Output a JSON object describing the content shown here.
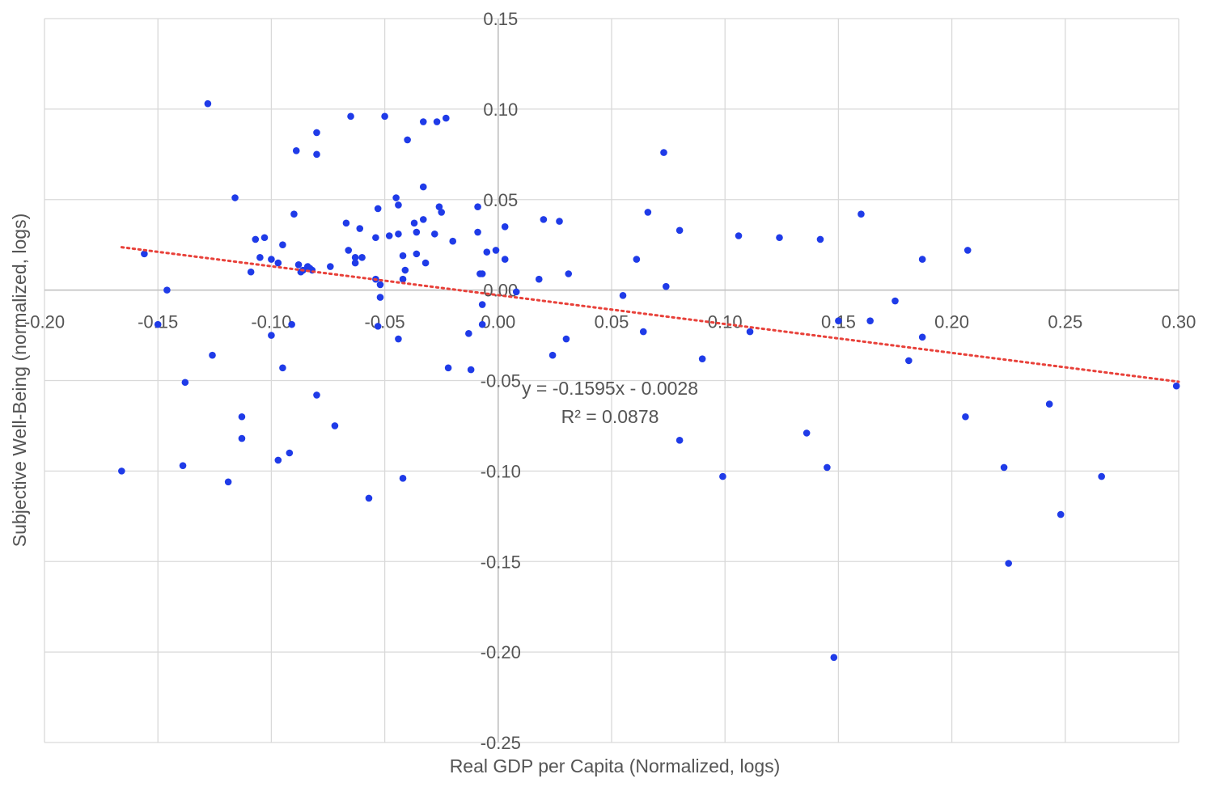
{
  "chart_data": {
    "type": "scatter",
    "xlabel": "Real GDP per Capita (Normalized, logs)",
    "ylabel": "Subjective Well-Being (normalized, logs)",
    "xlim": [
      -0.2,
      0.3
    ],
    "ylim": [
      -0.25,
      0.15
    ],
    "x_ticks": [
      "-0.20",
      "-0.15",
      "-0.10",
      "-0.05",
      "0.00",
      "0.05",
      "0.10",
      "0.15",
      "0.20",
      "0.25",
      "0.30"
    ],
    "y_ticks": [
      "0.15",
      "0.10",
      "0.05",
      "0.00",
      "-0.05",
      "-0.10",
      "-0.15",
      "-0.20",
      "-0.25"
    ],
    "grid": true,
    "point_color": "#1f3be8",
    "trendline": {
      "slope": -0.1595,
      "intercept": -0.0028,
      "x_range": [
        -0.166,
        0.3
      ],
      "color": "#e8413a",
      "style": "dotted",
      "equation": "y = -0.1595x - 0.0028",
      "r_squared": "R² = 0.0878"
    },
    "points": [
      [
        -0.128,
        0.103
      ],
      [
        -0.065,
        0.096
      ],
      [
        -0.05,
        0.096
      ],
      [
        -0.033,
        0.093
      ],
      [
        -0.027,
        0.093
      ],
      [
        -0.023,
        0.095
      ],
      [
        -0.08,
        0.087
      ],
      [
        -0.04,
        0.083
      ],
      [
        -0.089,
        0.077
      ],
      [
        -0.08,
        0.075
      ],
      [
        0.073,
        0.076
      ],
      [
        -0.033,
        0.057
      ],
      [
        -0.116,
        0.051
      ],
      [
        -0.045,
        0.051
      ],
      [
        -0.044,
        0.047
      ],
      [
        -0.026,
        0.046
      ],
      [
        -0.009,
        0.046
      ],
      [
        -0.053,
        0.045
      ],
      [
        -0.025,
        0.043
      ],
      [
        0.066,
        0.043
      ],
      [
        -0.09,
        0.042
      ],
      [
        0.16,
        0.042
      ],
      [
        0.02,
        0.039
      ],
      [
        -0.033,
        0.039
      ],
      [
        0.027,
        0.038
      ],
      [
        -0.067,
        0.037
      ],
      [
        -0.037,
        0.037
      ],
      [
        0.003,
        0.035
      ],
      [
        -0.061,
        0.034
      ],
      [
        0.08,
        0.033
      ],
      [
        -0.036,
        0.032
      ],
      [
        -0.009,
        0.032
      ],
      [
        -0.044,
        0.031
      ],
      [
        -0.028,
        0.031
      ],
      [
        -0.048,
        0.03
      ],
      [
        0.106,
        0.03
      ],
      [
        0.124,
        0.029
      ],
      [
        -0.103,
        0.029
      ],
      [
        -0.107,
        0.028
      ],
      [
        -0.054,
        0.029
      ],
      [
        0.142,
        0.028
      ],
      [
        -0.02,
        0.027
      ],
      [
        -0.095,
        0.025
      ],
      [
        0.207,
        0.022
      ],
      [
        -0.066,
        0.022
      ],
      [
        -0.001,
        0.022
      ],
      [
        -0.005,
        0.021
      ],
      [
        -0.156,
        0.02
      ],
      [
        -0.036,
        0.02
      ],
      [
        -0.042,
        0.019
      ],
      [
        -0.105,
        0.018
      ],
      [
        -0.063,
        0.018
      ],
      [
        -0.06,
        0.018
      ],
      [
        -0.1,
        0.017
      ],
      [
        -0.032,
        0.015
      ],
      [
        0.003,
        0.017
      ],
      [
        0.061,
        0.017
      ],
      [
        0.187,
        0.017
      ],
      [
        -0.097,
        0.015
      ],
      [
        -0.063,
        0.015
      ],
      [
        -0.088,
        0.014
      ],
      [
        -0.074,
        0.013
      ],
      [
        -0.084,
        0.013
      ],
      [
        -0.083,
        0.012
      ],
      [
        -0.086,
        0.011
      ],
      [
        -0.082,
        0.011
      ],
      [
        -0.109,
        0.01
      ],
      [
        -0.087,
        0.01
      ],
      [
        -0.041,
        0.011
      ],
      [
        0.031,
        0.009
      ],
      [
        -0.008,
        0.009
      ],
      [
        -0.007,
        0.009
      ],
      [
        -0.042,
        0.006
      ],
      [
        -0.054,
        0.006
      ],
      [
        0.018,
        0.006
      ],
      [
        -0.052,
        0.003
      ],
      [
        0.074,
        0.002
      ],
      [
        -0.146,
        0.0
      ],
      [
        0.008,
        -0.001
      ],
      [
        0.055,
        -0.003
      ],
      [
        -0.052,
        -0.004
      ],
      [
        0.175,
        -0.006
      ],
      [
        -0.007,
        -0.008
      ],
      [
        -0.15,
        -0.019
      ],
      [
        -0.091,
        -0.019
      ],
      [
        -0.053,
        -0.02
      ],
      [
        0.15,
        -0.017
      ],
      [
        0.164,
        -0.017
      ],
      [
        -0.007,
        -0.019
      ],
      [
        -0.1,
        -0.025
      ],
      [
        -0.013,
        -0.024
      ],
      [
        0.064,
        -0.023
      ],
      [
        0.111,
        -0.023
      ],
      [
        0.187,
        -0.026
      ],
      [
        -0.044,
        -0.027
      ],
      [
        0.03,
        -0.027
      ],
      [
        -0.126,
        -0.036
      ],
      [
        0.024,
        -0.036
      ],
      [
        0.09,
        -0.038
      ],
      [
        0.181,
        -0.039
      ],
      [
        -0.095,
        -0.043
      ],
      [
        -0.022,
        -0.043
      ],
      [
        -0.012,
        -0.044
      ],
      [
        -0.138,
        -0.051
      ],
      [
        0.299,
        -0.053
      ],
      [
        -0.08,
        -0.058
      ],
      [
        -0.113,
        -0.07
      ],
      [
        0.206,
        -0.07
      ],
      [
        -0.072,
        -0.075
      ],
      [
        0.136,
        -0.079
      ],
      [
        -0.113,
        -0.082
      ],
      [
        0.08,
        -0.083
      ],
      [
        -0.092,
        -0.09
      ],
      [
        -0.097,
        -0.094
      ],
      [
        -0.139,
        -0.097
      ],
      [
        0.145,
        -0.098
      ],
      [
        0.223,
        -0.098
      ],
      [
        -0.166,
        -0.1
      ],
      [
        0.243,
        -0.063
      ],
      [
        0.099,
        -0.103
      ],
      [
        0.266,
        -0.103
      ],
      [
        -0.042,
        -0.104
      ],
      [
        -0.119,
        -0.106
      ],
      [
        -0.057,
        -0.115
      ],
      [
        0.248,
        -0.124
      ],
      [
        0.225,
        -0.151
      ],
      [
        0.148,
        -0.203
      ]
    ]
  }
}
